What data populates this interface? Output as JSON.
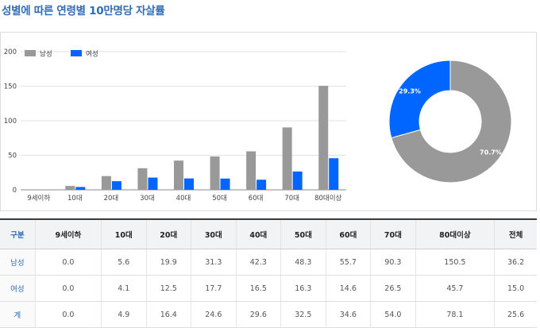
{
  "title": "성별에 따른 연령별 10만명당 자살률",
  "colors": {
    "male": "#999999",
    "female": "#0066ff",
    "title": "#2f6db5"
  },
  "chart_data": [
    {
      "type": "bar",
      "categories": [
        "9세이하",
        "10대",
        "20대",
        "30대",
        "40대",
        "50대",
        "60대",
        "70대",
        "80대이상"
      ],
      "series": [
        {
          "name": "남성",
          "values": [
            0.0,
            5.6,
            19.9,
            31.3,
            42.3,
            48.3,
            55.7,
            90.3,
            150.5
          ]
        },
        {
          "name": "여성",
          "values": [
            0.0,
            4.1,
            12.5,
            17.7,
            16.5,
            16.3,
            14.6,
            26.5,
            45.7
          ]
        }
      ],
      "yticks": [
        0,
        50,
        100,
        150,
        200
      ],
      "ylim": [
        0,
        200
      ],
      "grid": true,
      "legend": "top-left"
    },
    {
      "type": "pie",
      "donut": true,
      "slices": [
        {
          "label": "70.7%",
          "value": 70.7,
          "color": "#999999"
        },
        {
          "label": "29.3%",
          "value": 29.3,
          "color": "#0066ff"
        }
      ]
    }
  ],
  "table": {
    "headers": [
      "구분",
      "9세이하",
      "10대",
      "20대",
      "30대",
      "40대",
      "50대",
      "60대",
      "70대",
      "80대이상",
      "전체"
    ],
    "rows": [
      [
        "남성",
        "0.0",
        "5.6",
        "19.9",
        "31.3",
        "42.3",
        "48.3",
        "55.7",
        "90.3",
        "150.5",
        "36.2"
      ],
      [
        "여성",
        "0.0",
        "4.1",
        "12.5",
        "17.7",
        "16.5",
        "16.3",
        "14.6",
        "26.5",
        "45.7",
        "15.0"
      ],
      [
        "계",
        "0.0",
        "4.9",
        "16.4",
        "24.6",
        "29.6",
        "32.5",
        "34.6",
        "54.0",
        "78.1",
        "25.6"
      ]
    ]
  }
}
